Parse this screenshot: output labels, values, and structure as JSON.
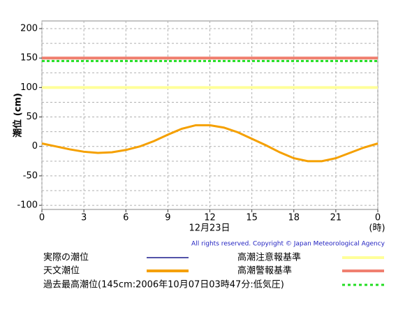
{
  "chart_data": {
    "type": "line",
    "y_label": "潮位 (cm)",
    "x_label": "12月23日",
    "x_unit": "(時)",
    "copyright": "All rights reserved. Copyright © Japan Meteorological Agency",
    "x": [
      0,
      1,
      2,
      3,
      4,
      5,
      6,
      7,
      8,
      9,
      10,
      11,
      12,
      13,
      14,
      15,
      16,
      17,
      18,
      19,
      20,
      21,
      22,
      23,
      24
    ],
    "series": [
      {
        "name": "実際の潮位",
        "color": "#1a1a8c",
        "values": [
          null,
          null,
          null,
          null,
          null,
          null,
          null,
          null,
          null,
          null,
          null,
          null,
          null,
          null,
          null,
          null,
          null,
          null,
          null,
          null,
          null,
          null,
          null,
          null,
          null
        ]
      },
      {
        "name": "天文潮位",
        "color": "#f5a000",
        "values": [
          5,
          0,
          -5,
          -9,
          -11,
          -10,
          -6,
          0,
          9,
          20,
          30,
          36,
          36,
          32,
          24,
          13,
          2,
          -10,
          -20,
          -25,
          -25,
          -20,
          -11,
          -2,
          5
        ]
      }
    ],
    "hlines": [
      {
        "name": "高潮注意報基準",
        "value": 100,
        "color": "#ffff99",
        "style": "solid"
      },
      {
        "name": "高潮警報基準",
        "value": 150,
        "color": "#f08070",
        "style": "solid"
      },
      {
        "name": "過去最高潮位(145cm:2006年10月07日03時47分:低気圧)",
        "value": 145,
        "color": "#22dd22",
        "style": "dashed"
      }
    ],
    "xlim": [
      0,
      24
    ],
    "xticks": [
      0,
      3,
      6,
      9,
      12,
      15,
      18,
      21,
      {
        "value": 24,
        "label": "0"
      }
    ],
    "ylim": [
      -107,
      213
    ],
    "yticks": [
      -100,
      -50,
      0,
      50,
      100,
      150,
      200
    ],
    "y_minor_grid": [
      -75,
      -25,
      25,
      75,
      125,
      175
    ],
    "grid": true
  }
}
